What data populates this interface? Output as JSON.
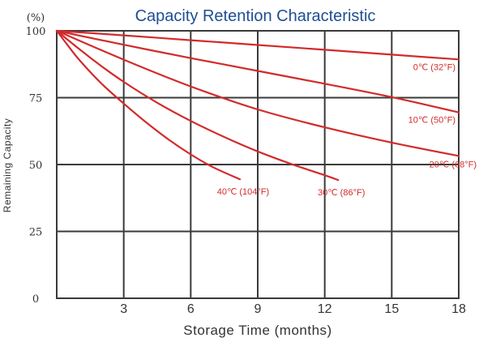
{
  "chart_data": {
    "type": "line",
    "title": "Capacity Retention Characteristic",
    "xlabel": "Storage Time (months)",
    "ylabel": "Remaining Capacity",
    "y_unit": "(%)",
    "xlim": [
      0,
      18
    ],
    "ylim": [
      0,
      100
    ],
    "x_ticks": [
      3,
      6,
      9,
      12,
      15,
      18
    ],
    "y_ticks": [
      0,
      25,
      50,
      75,
      100
    ],
    "grid": true,
    "line_color": "#d22b2b",
    "grid_color": "#3a3a3a",
    "title_color": "#1f4e93",
    "series": [
      {
        "name": "0℃ (32°F)",
        "x": [
          0,
          3,
          6,
          9,
          12,
          15,
          18
        ],
        "y": [
          100,
          98.3,
          96.5,
          94.7,
          92.9,
          91.1,
          89.3
        ]
      },
      {
        "name": "10℃ (50°F)",
        "x": [
          0,
          3,
          6,
          9,
          12,
          15,
          18
        ],
        "y": [
          100,
          94.8,
          89.8,
          85.0,
          80.2,
          75.2,
          69.5
        ]
      },
      {
        "name": "20℃ (68°F)",
        "x": [
          0,
          3,
          6,
          9,
          12,
          15,
          18
        ],
        "y": [
          100,
          89.2,
          79.2,
          70.6,
          63.9,
          58.2,
          53.2
        ]
      },
      {
        "name": "30℃ (86°F)",
        "x": [
          0,
          1,
          2,
          3,
          4.5,
          6,
          7.5,
          9,
          10.5,
          12,
          12.6
        ],
        "y": [
          100,
          93.2,
          86.8,
          80.9,
          73.1,
          66.3,
          60.3,
          54.9,
          50.2,
          46.0,
          44.2
        ]
      },
      {
        "name": "40℃ (104°F)",
        "x": [
          0,
          0.5,
          1,
          2,
          3,
          4,
          5,
          6,
          7,
          8.2
        ],
        "y": [
          100,
          94.5,
          89.2,
          80.3,
          72.8,
          65.8,
          59.4,
          53.8,
          49.0,
          44.5
        ]
      }
    ]
  }
}
